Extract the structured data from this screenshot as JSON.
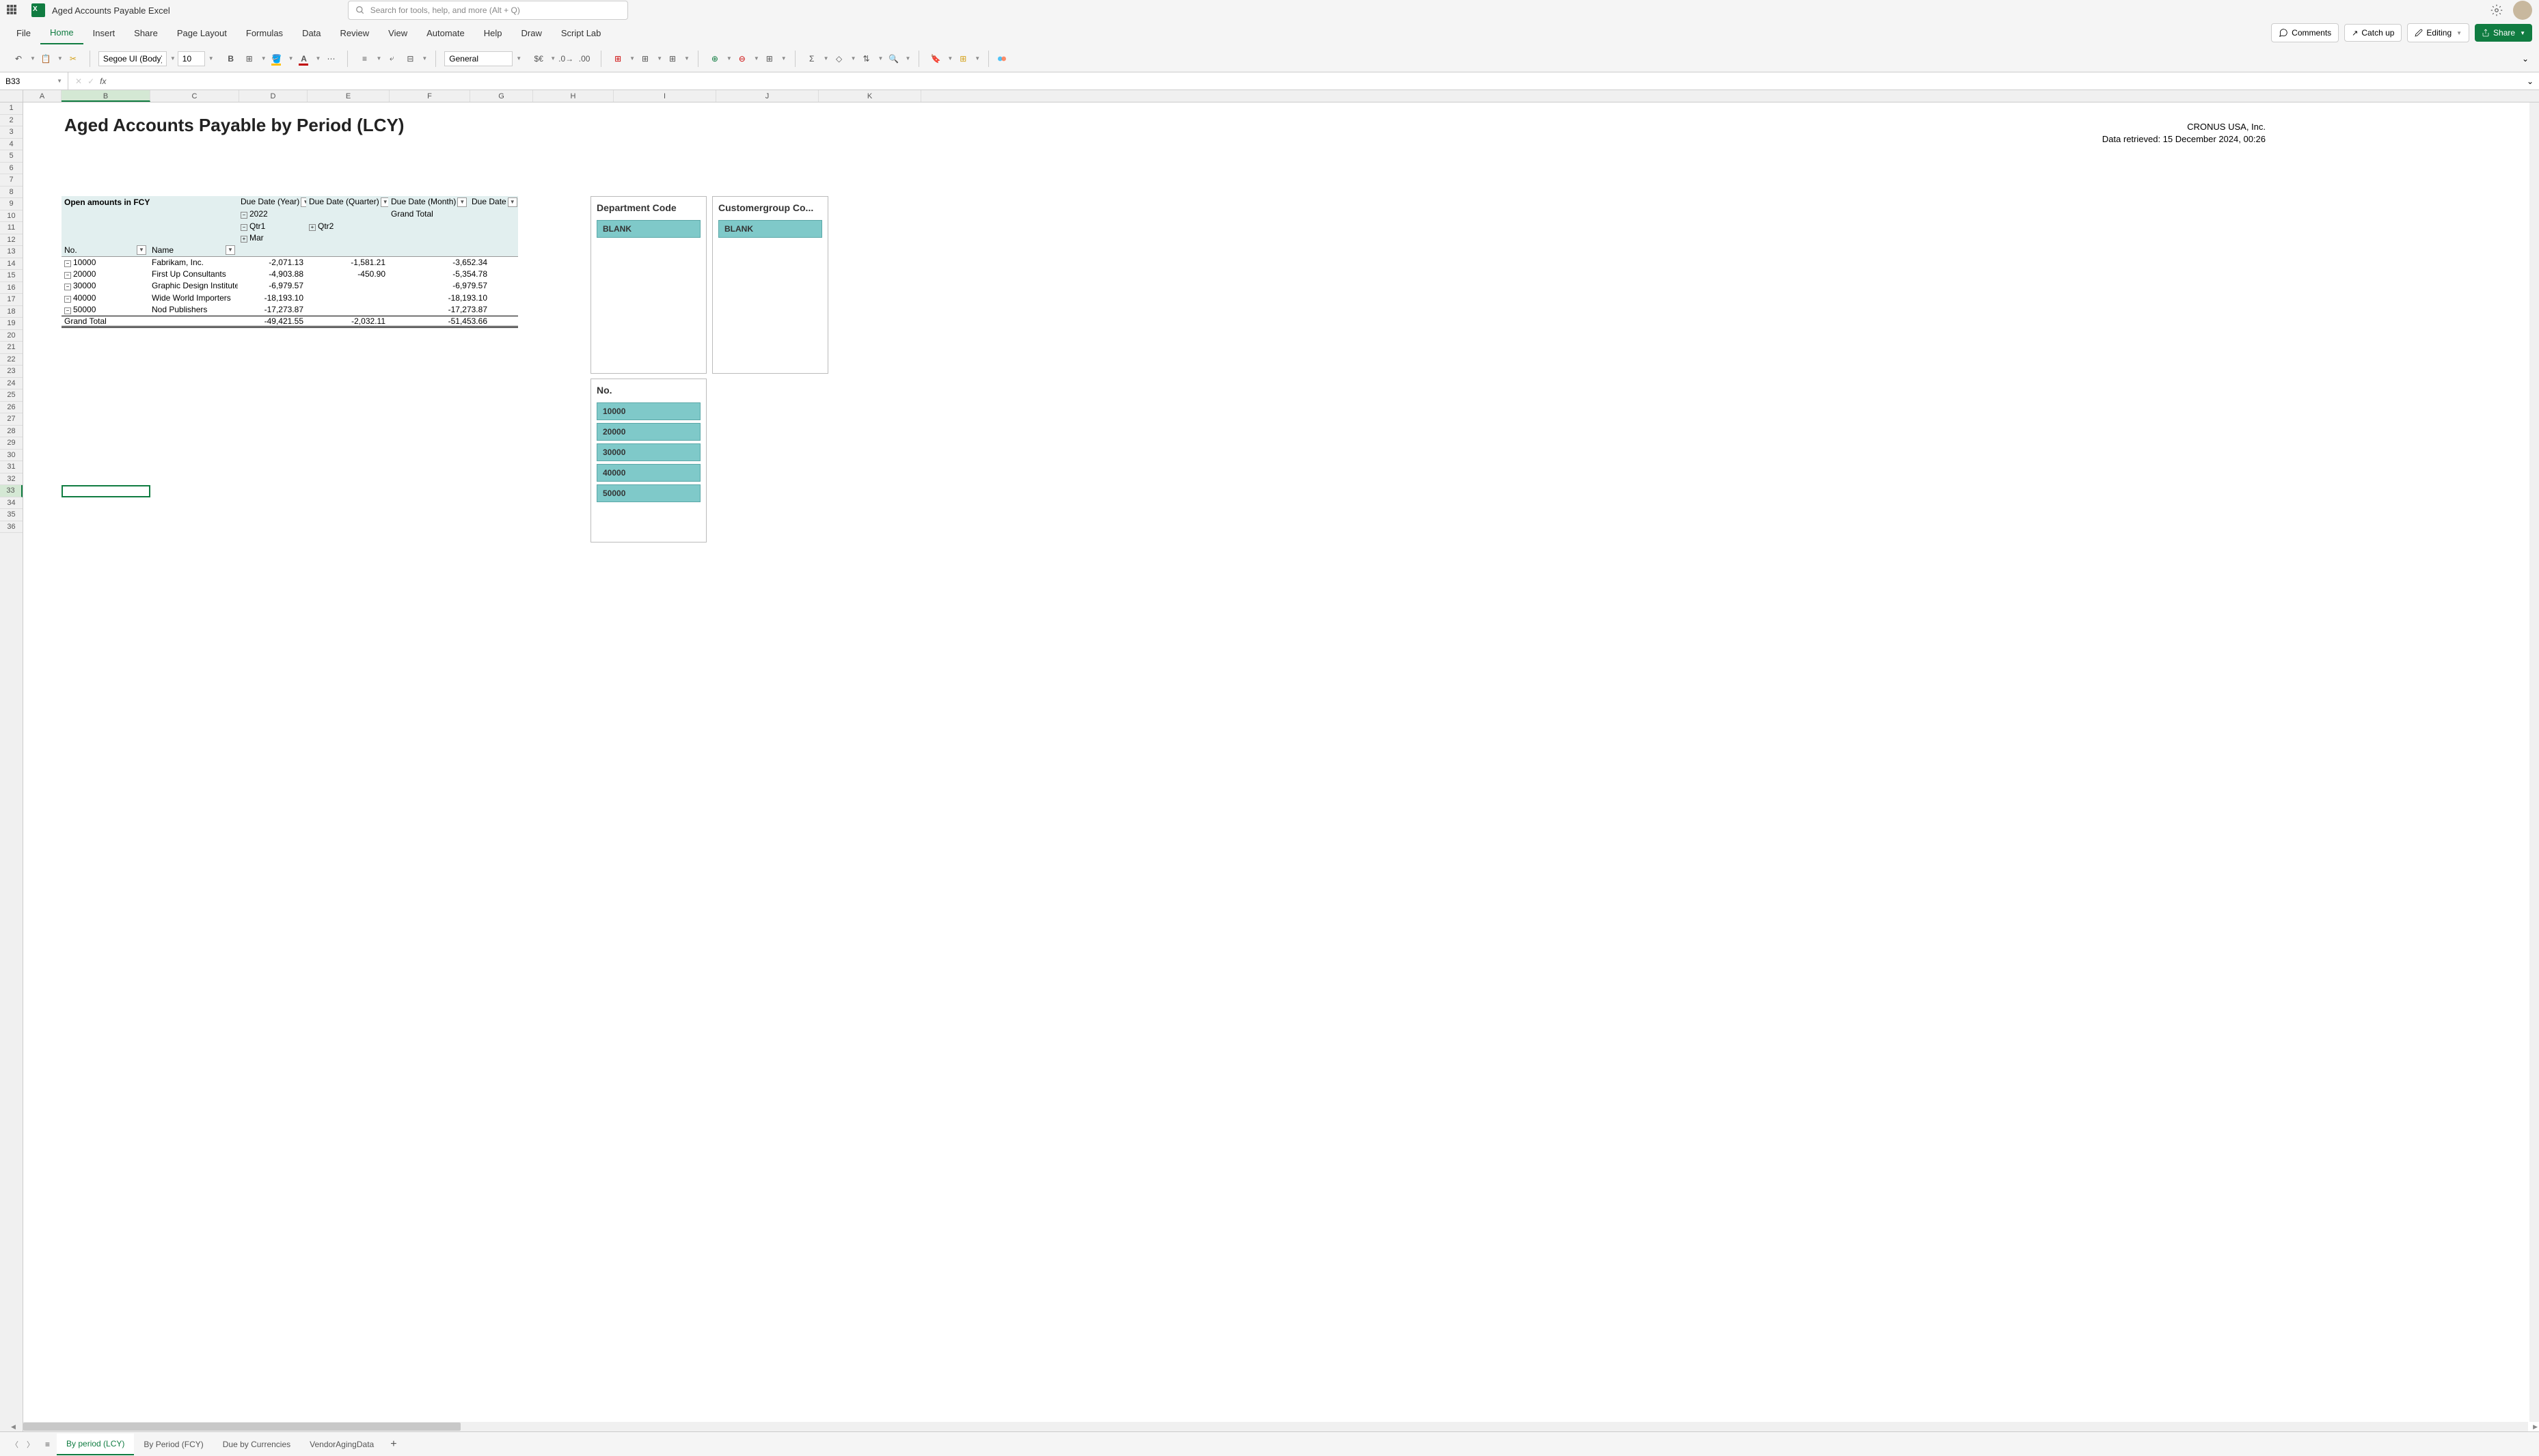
{
  "app": {
    "title": "Aged Accounts Payable Excel",
    "search_placeholder": "Search for tools, help, and more (Alt + Q)"
  },
  "ribbon": {
    "tabs": [
      "File",
      "Home",
      "Insert",
      "Share",
      "Page Layout",
      "Formulas",
      "Data",
      "Review",
      "View",
      "Automate",
      "Help",
      "Draw",
      "Script Lab"
    ],
    "active_tab": "Home",
    "comments": "Comments",
    "catchup": "Catch up",
    "editing": "Editing",
    "share": "Share"
  },
  "toolbar": {
    "font": "Segoe UI (Body)",
    "size": "10",
    "number_format": "General"
  },
  "formula_bar": {
    "cell_ref": "B33"
  },
  "columns": {
    "labels": [
      "A",
      "B",
      "C",
      "D",
      "E",
      "F",
      "G",
      "H",
      "I",
      "J",
      "K"
    ],
    "widths": [
      56,
      130,
      130,
      100,
      120,
      118,
      92,
      118,
      150,
      150,
      150
    ],
    "selected": "B"
  },
  "rows": {
    "count": 36,
    "selected": 33
  },
  "report": {
    "title": "Aged Accounts Payable by Period (LCY)",
    "company": "CRONUS USA, Inc.",
    "retrieved": "Data retrieved: 15 December 2024, 00:26"
  },
  "pivot": {
    "open_amounts_label": "Open amounts in FCY",
    "col_headers": {
      "year": "Due Date (Year)",
      "quarter": "Due Date (Quarter)",
      "month": "Due Date (Month)",
      "due_date": "Due Date"
    },
    "year_value": "2022",
    "qtr1": "Qtr1",
    "qtr2": "Qtr2",
    "mar": "Mar",
    "grand_total_col": "Grand Total",
    "row_headers": {
      "no": "No.",
      "name": "Name"
    },
    "rows": [
      {
        "no": "10000",
        "name": "Fabrikam, Inc.",
        "qtr1": "-2,071.13",
        "qtr2": "-1,581.21",
        "total": "-3,652.34"
      },
      {
        "no": "20000",
        "name": "First Up Consultants",
        "qtr1": "-4,903.88",
        "qtr2": "-450.90",
        "total": "-5,354.78"
      },
      {
        "no": "30000",
        "name": "Graphic Design Institute",
        "qtr1": "-6,979.57",
        "qtr2": "",
        "total": "-6,979.57"
      },
      {
        "no": "40000",
        "name": "Wide World Importers",
        "qtr1": "-18,193.10",
        "qtr2": "",
        "total": "-18,193.10"
      },
      {
        "no": "50000",
        "name": "Nod Publishers",
        "qtr1": "-17,273.87",
        "qtr2": "",
        "total": "-17,273.87"
      }
    ],
    "grand_total_label": "Grand Total",
    "grand_total": {
      "qtr1": "-49,421.55",
      "qtr2": "-2,032.11",
      "total": "-51,453.66"
    }
  },
  "slicers": {
    "dept": {
      "title": "Department Code",
      "items": [
        "BLANK"
      ]
    },
    "custgroup": {
      "title": "Customergroup Co...",
      "items": [
        "BLANK"
      ]
    },
    "no": {
      "title": "No.",
      "items": [
        "10000",
        "20000",
        "30000",
        "40000",
        "50000"
      ]
    }
  },
  "sheets": {
    "tabs": [
      "By period (LCY)",
      "By Period (FCY)",
      "Due by Currencies",
      "VendorAgingData"
    ],
    "active": "By period (LCY)"
  },
  "colors": {
    "primary": "#107c41",
    "slicer_item": "#7fc9c9",
    "pivot_header": "#e2efef"
  }
}
